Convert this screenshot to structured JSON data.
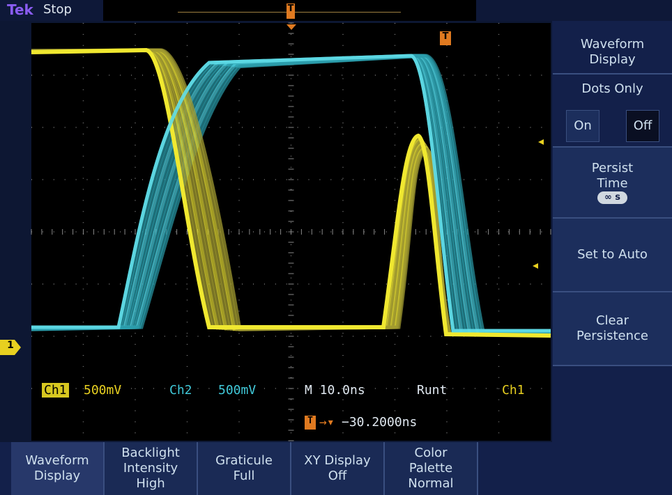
{
  "header": {
    "brand": "Tek",
    "status": "Stop",
    "trigger_position_marker": "T"
  },
  "screen": {
    "trigger_marker": "T",
    "ch1_marker": "1"
  },
  "side_menu": {
    "title": "Waveform Display",
    "dots_only": "Dots Only",
    "on": "On",
    "off": "Off",
    "persist_time": "Persist Time",
    "persist_value": "∞ s",
    "set_to_auto": "Set to Auto",
    "clear_persistence": "Clear Persistence"
  },
  "readout": {
    "ch1": "Ch1",
    "ch1_scale": "500mV",
    "ch2": "Ch2",
    "ch2_scale": "500mV",
    "timebase": "M 10.0ns",
    "trigger_type": "Runt",
    "trigger_source": "Ch1",
    "trigger_marker": "T",
    "trigger_offset": "−30.2000ns"
  },
  "bottom_menu": [
    "Waveform Display",
    "Backlight Intensity High",
    "Graticule Full",
    "XY Display Off",
    "Color Palette Normal"
  ]
}
